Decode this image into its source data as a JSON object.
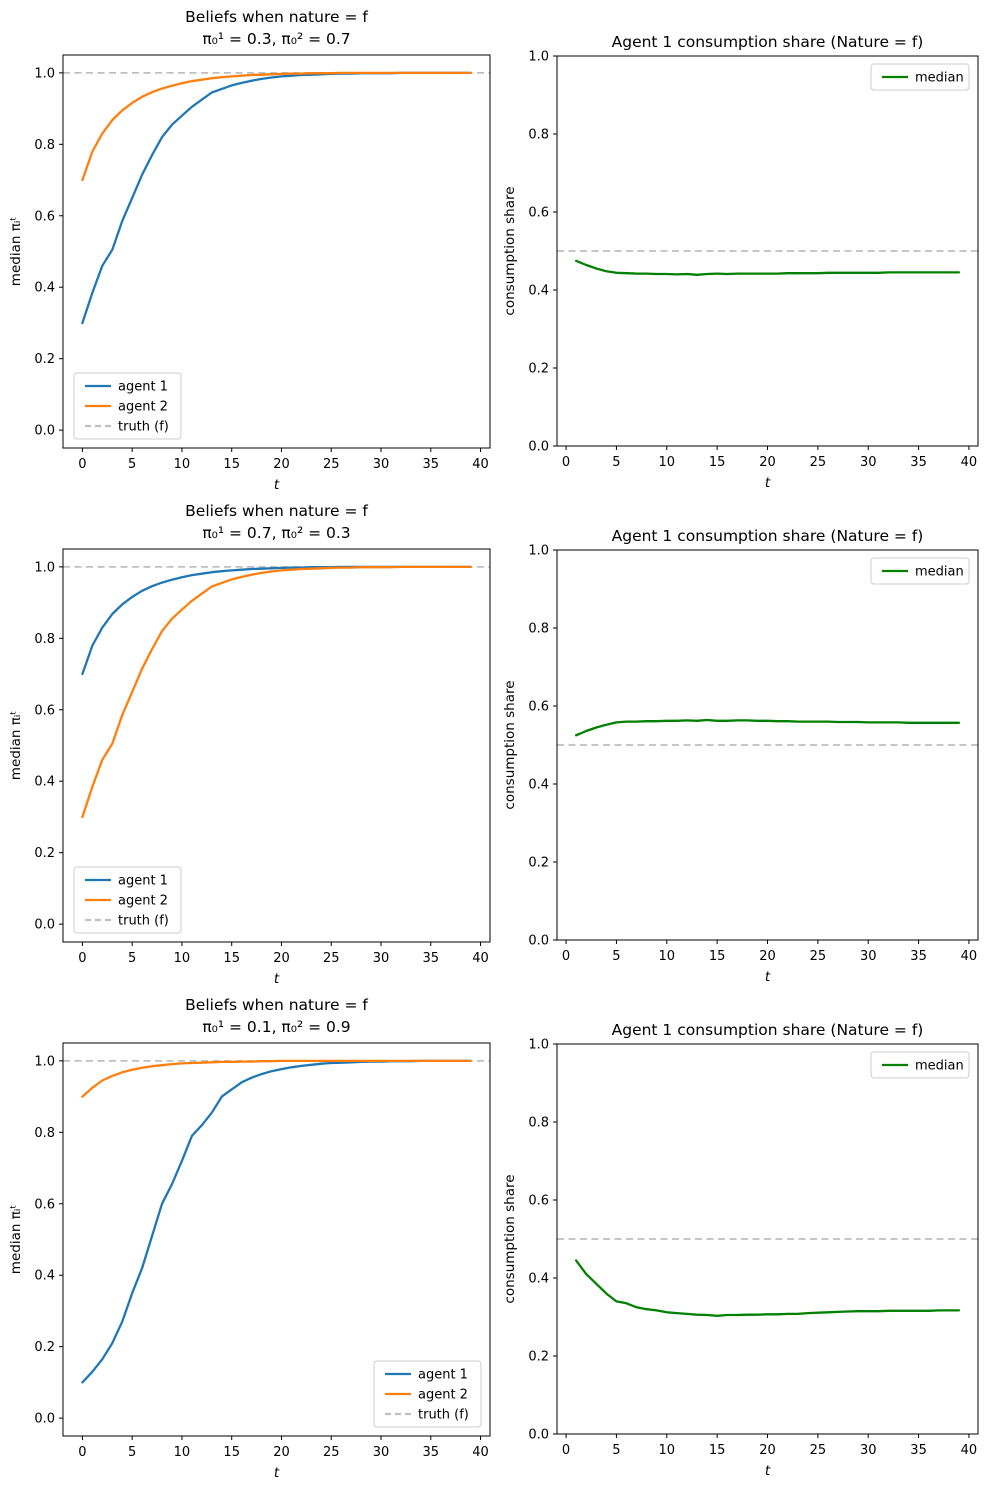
{
  "colors": {
    "agent1": "#1f77b4",
    "agent2": "#ff7f0e",
    "median": "#008000",
    "truth": "#bfbfbf",
    "axes": "#000000"
  },
  "chart_data": [
    {
      "id": "beliefs-row1",
      "type": "line",
      "title": "Beliefs when nature = f",
      "subtitle": "π₀¹ = 0.3, π₀² = 0.7",
      "xlabel": "t",
      "ylabel": "median πᵢᵗ",
      "xlim": [
        -1.95,
        40.95
      ],
      "ylim": [
        -0.05,
        1.05
      ],
      "xticks": [
        0,
        5,
        10,
        15,
        20,
        25,
        30,
        35,
        40
      ],
      "yticks": [
        0.0,
        0.2,
        0.4,
        0.6,
        0.8,
        1.0
      ],
      "grid": false,
      "x_start": 0,
      "hline": {
        "y": 1.0,
        "label": "truth (f)",
        "color": "#bfbfbf",
        "style": "dashed"
      },
      "legend": {
        "loc": "lower-left",
        "entries": [
          "agent 1",
          "agent 2",
          "truth (f)"
        ]
      },
      "series": [
        {
          "name": "agent 1",
          "color": "#1f77b4",
          "values": [
            0.3,
            0.385,
            0.46,
            0.505,
            0.585,
            0.65,
            0.715,
            0.77,
            0.82,
            0.855,
            0.88,
            0.905,
            0.925,
            0.945,
            0.955,
            0.965,
            0.972,
            0.978,
            0.983,
            0.987,
            0.99,
            0.992,
            0.994,
            0.995,
            0.996,
            0.997,
            0.998,
            0.998,
            0.999,
            0.999,
            0.999,
            0.999,
            1.0,
            1.0,
            1.0,
            1.0,
            1.0,
            1.0,
            1.0,
            1.0
          ]
        },
        {
          "name": "agent 2",
          "color": "#ff7f0e",
          "values": [
            0.7,
            0.78,
            0.83,
            0.868,
            0.895,
            0.916,
            0.933,
            0.946,
            0.956,
            0.964,
            0.971,
            0.977,
            0.981,
            0.985,
            0.988,
            0.99,
            0.992,
            0.994,
            0.995,
            0.996,
            0.997,
            0.998,
            0.998,
            0.999,
            0.999,
            0.999,
            1.0,
            1.0,
            1.0,
            1.0,
            1.0,
            1.0,
            1.0,
            1.0,
            1.0,
            1.0,
            1.0,
            1.0,
            1.0,
            1.0
          ]
        }
      ]
    },
    {
      "id": "consumption-row1",
      "type": "line",
      "title": "Agent 1 consumption share (Nature = f)",
      "subtitle": null,
      "xlabel": "t",
      "ylabel": "consumption share",
      "xlim": [
        -0.9,
        40.9
      ],
      "ylim": [
        0.0,
        1.0
      ],
      "xticks": [
        0,
        5,
        10,
        15,
        20,
        25,
        30,
        35,
        40
      ],
      "yticks": [
        0.0,
        0.2,
        0.4,
        0.6,
        0.8,
        1.0
      ],
      "grid": false,
      "x_start": 1,
      "hline": {
        "y": 0.5,
        "label": null,
        "color": "#bfbfbf",
        "style": "dashed"
      },
      "legend": {
        "loc": "upper-right",
        "entries": [
          "median"
        ]
      },
      "series": [
        {
          "name": "median",
          "color": "#008000",
          "values": [
            0.475,
            0.464,
            0.455,
            0.448,
            0.444,
            0.443,
            0.442,
            0.442,
            0.441,
            0.441,
            0.44,
            0.441,
            0.439,
            0.441,
            0.442,
            0.441,
            0.442,
            0.442,
            0.442,
            0.442,
            0.442,
            0.443,
            0.443,
            0.443,
            0.443,
            0.444,
            0.444,
            0.444,
            0.444,
            0.444,
            0.444,
            0.445,
            0.445,
            0.445,
            0.445,
            0.445,
            0.445,
            0.445,
            0.445
          ]
        }
      ]
    },
    {
      "id": "beliefs-row2",
      "type": "line",
      "title": "Beliefs when nature = f",
      "subtitle": "π₀¹ = 0.7, π₀² = 0.3",
      "xlabel": "t",
      "ylabel": "median πᵢᵗ",
      "xlim": [
        -1.95,
        40.95
      ],
      "ylim": [
        -0.05,
        1.05
      ],
      "xticks": [
        0,
        5,
        10,
        15,
        20,
        25,
        30,
        35,
        40
      ],
      "yticks": [
        0.0,
        0.2,
        0.4,
        0.6,
        0.8,
        1.0
      ],
      "grid": false,
      "x_start": 0,
      "hline": {
        "y": 1.0,
        "label": "truth (f)",
        "color": "#bfbfbf",
        "style": "dashed"
      },
      "legend": {
        "loc": "lower-left",
        "entries": [
          "agent 1",
          "agent 2",
          "truth (f)"
        ]
      },
      "series": [
        {
          "name": "agent 1",
          "color": "#1f77b4",
          "values": [
            0.7,
            0.78,
            0.83,
            0.868,
            0.895,
            0.916,
            0.933,
            0.946,
            0.956,
            0.964,
            0.971,
            0.977,
            0.981,
            0.985,
            0.988,
            0.99,
            0.992,
            0.994,
            0.995,
            0.996,
            0.997,
            0.998,
            0.998,
            0.999,
            0.999,
            0.999,
            1.0,
            1.0,
            1.0,
            1.0,
            1.0,
            1.0,
            1.0,
            1.0,
            1.0,
            1.0,
            1.0,
            1.0,
            1.0,
            1.0
          ]
        },
        {
          "name": "agent 2",
          "color": "#ff7f0e",
          "values": [
            0.3,
            0.385,
            0.46,
            0.505,
            0.585,
            0.65,
            0.715,
            0.77,
            0.82,
            0.855,
            0.88,
            0.905,
            0.925,
            0.945,
            0.955,
            0.965,
            0.972,
            0.978,
            0.983,
            0.987,
            0.99,
            0.992,
            0.994,
            0.995,
            0.996,
            0.997,
            0.998,
            0.998,
            0.999,
            0.999,
            0.999,
            0.999,
            1.0,
            1.0,
            1.0,
            1.0,
            1.0,
            1.0,
            1.0,
            1.0
          ]
        }
      ]
    },
    {
      "id": "consumption-row2",
      "type": "line",
      "title": "Agent 1 consumption share (Nature = f)",
      "subtitle": null,
      "xlabel": "t",
      "ylabel": "consumption share",
      "xlim": [
        -0.9,
        40.9
      ],
      "ylim": [
        0.0,
        1.0
      ],
      "xticks": [
        0,
        5,
        10,
        15,
        20,
        25,
        30,
        35,
        40
      ],
      "yticks": [
        0.0,
        0.2,
        0.4,
        0.6,
        0.8,
        1.0
      ],
      "grid": false,
      "x_start": 1,
      "hline": {
        "y": 0.5,
        "label": null,
        "color": "#bfbfbf",
        "style": "dashed"
      },
      "legend": {
        "loc": "upper-right",
        "entries": [
          "median"
        ]
      },
      "series": [
        {
          "name": "median",
          "color": "#008000",
          "values": [
            0.525,
            0.536,
            0.545,
            0.552,
            0.558,
            0.56,
            0.56,
            0.561,
            0.561,
            0.562,
            0.562,
            0.563,
            0.562,
            0.564,
            0.562,
            0.562,
            0.563,
            0.563,
            0.562,
            0.562,
            0.561,
            0.561,
            0.56,
            0.56,
            0.56,
            0.56,
            0.559,
            0.559,
            0.559,
            0.558,
            0.558,
            0.558,
            0.558,
            0.557,
            0.557,
            0.557,
            0.557,
            0.557,
            0.557
          ]
        }
      ]
    },
    {
      "id": "beliefs-row3",
      "type": "line",
      "title": "Beliefs when nature = f",
      "subtitle": "π₀¹ = 0.1, π₀² = 0.9",
      "xlabel": "t",
      "ylabel": "median πᵢᵗ",
      "xlim": [
        -1.95,
        40.95
      ],
      "ylim": [
        -0.05,
        1.05
      ],
      "xticks": [
        0,
        5,
        10,
        15,
        20,
        25,
        30,
        35,
        40
      ],
      "yticks": [
        0.0,
        0.2,
        0.4,
        0.6,
        0.8,
        1.0
      ],
      "grid": false,
      "x_start": 0,
      "hline": {
        "y": 1.0,
        "label": "truth (f)",
        "color": "#bfbfbf",
        "style": "dashed"
      },
      "legend": {
        "loc": "lower-right",
        "entries": [
          "agent 1",
          "agent 2",
          "truth (f)"
        ]
      },
      "series": [
        {
          "name": "agent 1",
          "color": "#1f77b4",
          "values": [
            0.1,
            0.13,
            0.165,
            0.21,
            0.27,
            0.35,
            0.42,
            0.51,
            0.6,
            0.655,
            0.72,
            0.79,
            0.82,
            0.855,
            0.9,
            0.92,
            0.94,
            0.953,
            0.963,
            0.971,
            0.977,
            0.982,
            0.986,
            0.989,
            0.992,
            0.994,
            0.995,
            0.996,
            0.997,
            0.998,
            0.998,
            0.999,
            0.999,
            0.999,
            1.0,
            1.0,
            1.0,
            1.0,
            1.0,
            1.0
          ]
        },
        {
          "name": "agent 2",
          "color": "#ff7f0e",
          "values": [
            0.9,
            0.925,
            0.945,
            0.958,
            0.968,
            0.975,
            0.981,
            0.985,
            0.988,
            0.991,
            0.993,
            0.994,
            0.995,
            0.996,
            0.997,
            0.997,
            0.998,
            0.998,
            0.999,
            0.999,
            1.0,
            1.0,
            1.0,
            1.0,
            1.0,
            1.0,
            1.0,
            1.0,
            1.0,
            1.0,
            1.0,
            1.0,
            1.0,
            1.0,
            1.0,
            1.0,
            1.0,
            1.0,
            1.0,
            1.0
          ]
        }
      ]
    },
    {
      "id": "consumption-row3",
      "type": "line",
      "title": "Agent 1 consumption share (Nature = f)",
      "subtitle": null,
      "xlabel": "t",
      "ylabel": "consumption share",
      "xlim": [
        -0.9,
        40.9
      ],
      "ylim": [
        0.0,
        1.0
      ],
      "xticks": [
        0,
        5,
        10,
        15,
        20,
        25,
        30,
        35,
        40
      ],
      "yticks": [
        0.0,
        0.2,
        0.4,
        0.6,
        0.8,
        1.0
      ],
      "grid": false,
      "x_start": 1,
      "hline": {
        "y": 0.5,
        "label": null,
        "color": "#bfbfbf",
        "style": "dashed"
      },
      "legend": {
        "loc": "upper-right",
        "entries": [
          "median"
        ]
      },
      "series": [
        {
          "name": "median",
          "color": "#008000",
          "values": [
            0.445,
            0.41,
            0.385,
            0.36,
            0.34,
            0.335,
            0.325,
            0.32,
            0.317,
            0.312,
            0.31,
            0.308,
            0.306,
            0.305,
            0.303,
            0.305,
            0.305,
            0.306,
            0.306,
            0.307,
            0.307,
            0.308,
            0.308,
            0.31,
            0.311,
            0.312,
            0.313,
            0.314,
            0.315,
            0.315,
            0.315,
            0.316,
            0.316,
            0.316,
            0.316,
            0.316,
            0.317,
            0.317,
            0.317
          ]
        }
      ]
    }
  ]
}
